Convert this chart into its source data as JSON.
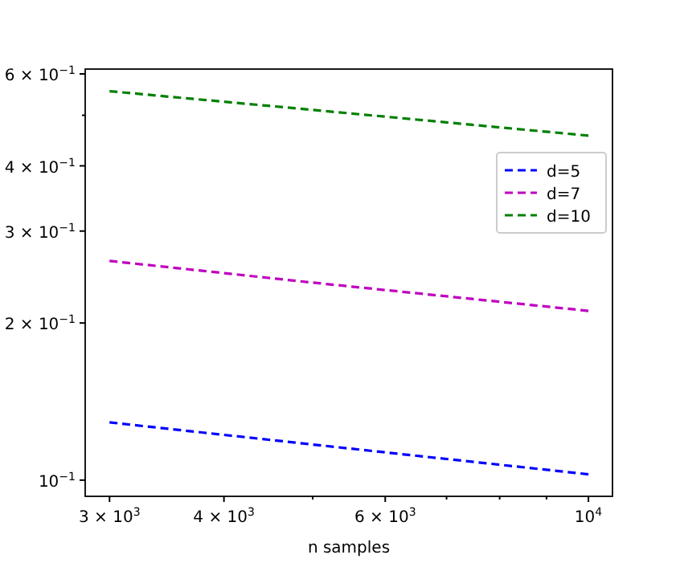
{
  "chart_data": {
    "type": "line",
    "xlabel": "n samples",
    "log": "xy",
    "legend": "top right",
    "line_style": "dashed",
    "marker": "none",
    "x": [
      3000,
      5000,
      10000
    ],
    "xlim": [
      2822,
      10624
    ],
    "xticks": [
      {
        "value": 3000,
        "label": "3 × 10$^{3}$"
      },
      {
        "value": 4000,
        "label": "4 × 10$^{3}$"
      },
      {
        "value": 5000,
        "label": null
      },
      {
        "value": 6000,
        "label": "6 × 10$^{3}$"
      },
      {
        "value": 7000,
        "label": null
      },
      {
        "value": 8000,
        "label": null
      },
      {
        "value": 9000,
        "label": null
      },
      {
        "value": 10000,
        "label": "10$^{4}$"
      }
    ],
    "ylim": [
      0.0931,
      0.613
    ],
    "yticks": [
      {
        "value": 0.1,
        "label": "10$^{−1}$"
      },
      {
        "value": 0.2,
        "label": "2 × 10$^{−1}$"
      },
      {
        "value": 0.3,
        "label": "3 × 10$^{−1}$"
      },
      {
        "value": 0.4,
        "label": "4 × 10$^{−1}$"
      },
      {
        "value": 0.5,
        "label": null
      },
      {
        "value": 0.6,
        "label": "6 × 10$^{−1}$"
      }
    ],
    "series": [
      {
        "name": "d=5",
        "color": "#0000ff",
        "values": [
          0.129,
          0.117,
          0.1026
        ]
      },
      {
        "name": "d=7",
        "color": "#bf00bf",
        "values": [
          0.263,
          0.239,
          0.211
        ]
      },
      {
        "name": "d=10",
        "color": "#008000",
        "values": [
          0.556,
          0.512,
          0.457
        ]
      }
    ]
  }
}
